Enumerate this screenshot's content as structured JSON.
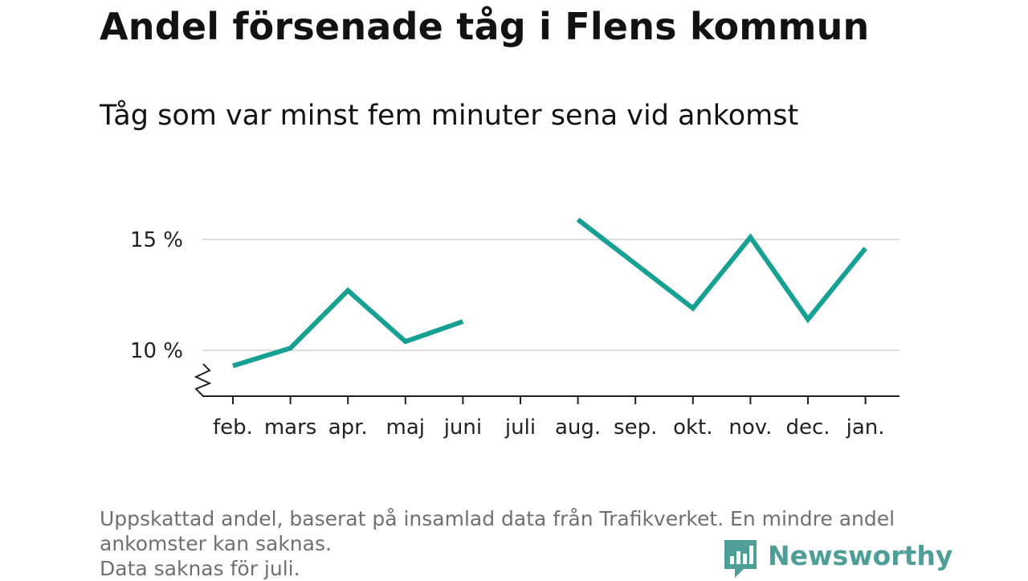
{
  "header": {
    "title": "Andel försenade tåg i Flens kommun",
    "subtitle": "Tåg som var minst fem minuter sena vid ankomst"
  },
  "chart_data": {
    "type": "line",
    "title": "Andel försenade tåg i Flens kommun",
    "subtitle": "Tåg som var minst fem minuter sena vid ankomst",
    "categories": [
      "feb.",
      "mars",
      "apr.",
      "maj",
      "juni",
      "juli",
      "aug.",
      "sep.",
      "okt.",
      "nov.",
      "dec.",
      "jan."
    ],
    "series": [
      {
        "values": [
          9.3,
          10.1,
          12.7,
          10.4,
          11.3,
          null,
          15.9,
          null,
          11.9,
          15.1,
          11.4,
          14.6
        ],
        "color": "#16a193"
      }
    ],
    "yticks": [
      10,
      15
    ],
    "ytick_labels": [
      "10 %",
      "15 %"
    ],
    "ylim": [
      8,
      16.5
    ],
    "y_axis_break": true,
    "grid": true
  },
  "footer": {
    "notes": [
      "Uppskattad andel, baserat på insamlad data från Trafikverket. En mindre andel",
      "ankomster kan saknas.",
      "Data saknas för juli."
    ],
    "brand": "Newsworthy",
    "brand_color": "#4f9f98",
    "brand_icon": "newsworthy-logo-icon"
  }
}
